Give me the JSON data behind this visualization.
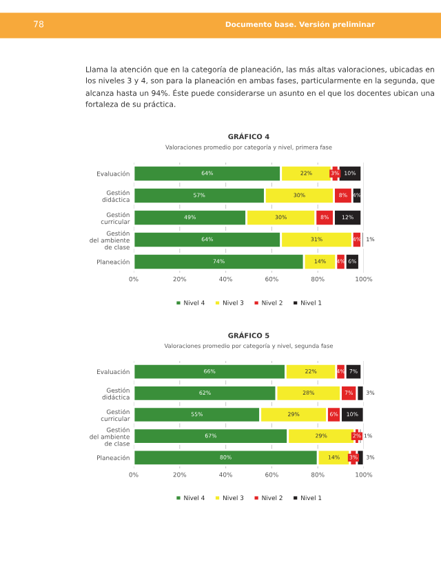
{
  "chart_data": [
    {
      "type": "bar",
      "orientation": "horizontal",
      "stacked": true,
      "title": "GRÁFICO 4",
      "subtitle": "Valoraciones promedio por categoría y nivel, primera fase",
      "annotations": [
        "78",
        "Documento base. Versión preliminar",
        "Llama la atención que en la categoría de planeación, las más altas valoraciones, ubicadas en los niveles 3 y 4, son para la planeación en ambas fases, particularmente en la segunda, que alcanza hasta un 94%. Éste puede considerarse un asunto en el que los docentes ubican una fortaleza de su práctica."
      ],
      "categories": [
        "Evaluación",
        "Gestión\ndidáctica",
        "Gestión\ncurricular",
        "Gestión\ndel ambiente\nde clase",
        "Planeación"
      ],
      "series": [
        {
          "name": "Nivel 4",
          "color": "#3a8f3a",
          "values": [
            64,
            57,
            49,
            64,
            74
          ],
          "value_labels": [
            "64%",
            "57%",
            "49%",
            "64%",
            "74%"
          ]
        },
        {
          "name": "Nivel 3",
          "color": "#f5ec2a",
          "values": [
            22,
            30,
            30,
            31,
            14
          ],
          "value_labels": [
            "22%",
            "30%",
            "30%",
            "31%",
            "14%"
          ]
        },
        {
          "name": "Nivel 2",
          "color": "#e32526",
          "values": [
            3,
            8,
            8,
            4,
            4
          ],
          "value_labels": [
            "3%",
            "8%",
            "8%",
            "4%",
            "4%"
          ]
        },
        {
          "name": "Nivel 1",
          "color": "#231f20",
          "values": [
            10,
            4,
            12,
            1,
            6
          ],
          "value_labels": [
            "10%",
            "4%",
            "12%",
            "1%",
            "6%"
          ]
        }
      ],
      "xlim": [
        0,
        100
      ],
      "xticks": [
        {
          "value": 0,
          "label": "0%"
        },
        {
          "value": 20,
          "label": "20%"
        },
        {
          "value": 40,
          "label": "40%"
        },
        {
          "value": 60,
          "label": "60%"
        },
        {
          "value": 80,
          "label": "80%"
        },
        {
          "value": 100,
          "label": "100%"
        }
      ],
      "grid": "x",
      "legend": "bottom"
    },
    {
      "type": "bar",
      "orientation": "horizontal",
      "stacked": true,
      "title": "GRÁFICO 5",
      "subtitle": "Valoraciones promedio por categoría y nivel, segunda fase",
      "categories": [
        "Evaluación",
        "Gestión\ndidáctica",
        "Gestión\ncurricular",
        "Gestión\ndel ambiente\nde clase",
        "Planeación"
      ],
      "series": [
        {
          "name": "Nivel 4",
          "color": "#3a8f3a",
          "values": [
            66,
            62,
            55,
            67,
            80
          ],
          "value_labels": [
            "66%",
            "62%",
            "55%",
            "67%",
            "80%"
          ]
        },
        {
          "name": "Nivel 3",
          "color": "#f5ec2a",
          "values": [
            22,
            28,
            29,
            29,
            14
          ],
          "value_labels": [
            "22%",
            "28%",
            "29%",
            "29%",
            "14%"
          ]
        },
        {
          "name": "Nivel 2",
          "color": "#e32526",
          "values": [
            4,
            7,
            6,
            2,
            3
          ],
          "value_labels": [
            "4%",
            "7%",
            "6%",
            "2%",
            "3%"
          ]
        },
        {
          "name": "Nivel 1",
          "color": "#231f20",
          "values": [
            7,
            3,
            10,
            1,
            3
          ],
          "value_labels": [
            "7%",
            "3%",
            "10%",
            "1%",
            "3%"
          ]
        }
      ],
      "xlim": [
        0,
        100
      ],
      "xticks": [
        {
          "value": 0,
          "label": "0%"
        },
        {
          "value": 20,
          "label": "20%"
        },
        {
          "value": 40,
          "label": "40%"
        },
        {
          "value": 60,
          "label": "60%"
        },
        {
          "value": 80,
          "label": "80%"
        },
        {
          "value": 100,
          "label": "100%"
        }
      ],
      "grid": "x",
      "legend": "bottom"
    }
  ]
}
